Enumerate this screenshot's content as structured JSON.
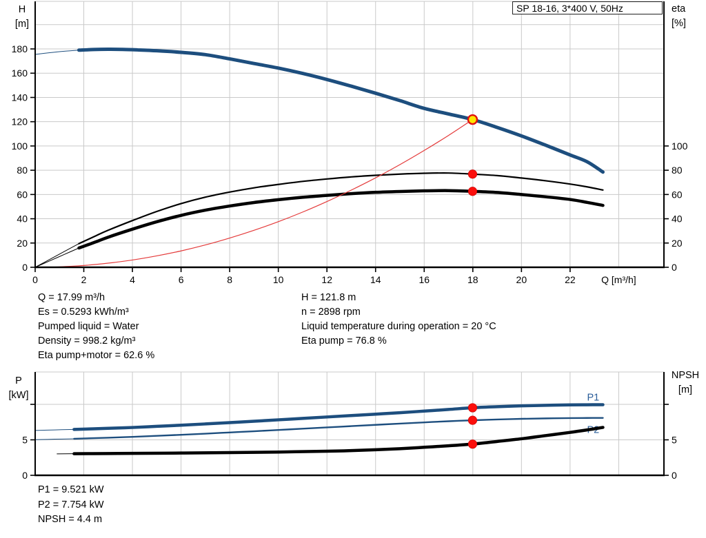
{
  "colors": {
    "curve_blue": "#1d4e7e",
    "curve_black": "#000000",
    "curve_red": "#e43a3a",
    "marker_red": "#fb0f0c",
    "duty_fill": "#ffe500",
    "duty_ring": "#e01010",
    "grid": "#c9c9c9",
    "axis": "#000000",
    "label_blue": "#2a5d99",
    "text": "#000000",
    "background": "#ffffff"
  },
  "axis_titles": {
    "qh_left": [
      "H",
      "[m]"
    ],
    "qh_right": [
      "eta",
      "[%]"
    ],
    "power_left": [
      "P",
      "[kW]"
    ],
    "power_right": [
      "NPSH",
      "[m]"
    ]
  },
  "info": {
    "left": [
      "Q = 17.99 m³/h",
      "Es = 0.5293 kWh/m³",
      "Pumped liquid = Water",
      "Density = 998.2 kg/m³",
      "Eta pump+motor = 62.6 %"
    ],
    "right": [
      "H = 121.8 m",
      "n = 2898 rpm",
      "Liquid temperature during operation = 20 °C",
      "Eta pump = 76.8 %"
    ],
    "bottom": [
      "P1 = 9.521 kW",
      "P2 = 7.754 kW",
      "NPSH = 4.4 m"
    ]
  },
  "chart_data": [
    {
      "id": "qh",
      "type": "line",
      "title": "SP 18-16, 3*400 V, 50Hz",
      "xlabel": "Q [m³/h]",
      "xlabel_at": 24,
      "ylabel_left": "H [m]",
      "ylabel_right": "eta [%]",
      "xlim": [
        0,
        25.86
      ],
      "ylim": [
        0,
        219.2
      ],
      "right_axis_scale": 1,
      "grid": true,
      "grid_x": [
        2,
        4,
        6,
        8,
        10,
        12,
        14,
        16,
        18,
        20,
        22,
        24
      ],
      "grid_y": [
        20,
        40,
        60,
        80,
        100,
        120,
        140,
        160,
        180,
        200
      ],
      "x_ticks": [
        {
          "v": 0,
          "label": "0"
        },
        {
          "v": 2,
          "label": "2"
        },
        {
          "v": 4,
          "label": "4"
        },
        {
          "v": 6,
          "label": "6"
        },
        {
          "v": 8,
          "label": "8"
        },
        {
          "v": 10,
          "label": "10"
        },
        {
          "v": 12,
          "label": "12"
        },
        {
          "v": 14,
          "label": "14"
        },
        {
          "v": 16,
          "label": "16"
        },
        {
          "v": 18,
          "label": "18"
        },
        {
          "v": 20,
          "label": "20"
        },
        {
          "v": 22,
          "label": "22"
        }
      ],
      "y_ticks_left": [
        {
          "v": 0,
          "label": "0"
        },
        {
          "v": 20,
          "label": "20"
        },
        {
          "v": 40,
          "label": "40"
        },
        {
          "v": 60,
          "label": "60"
        },
        {
          "v": 80,
          "label": "80"
        },
        {
          "v": 100,
          "label": "100"
        },
        {
          "v": 120,
          "label": "120"
        },
        {
          "v": 140,
          "label": "140"
        },
        {
          "v": 160,
          "label": "160"
        },
        {
          "v": 180,
          "label": "180"
        }
      ],
      "y_ticks_right": [
        {
          "v": 0,
          "label": "0"
        },
        {
          "v": 20,
          "label": "20"
        },
        {
          "v": 40,
          "label": "40"
        },
        {
          "v": 60,
          "label": "60"
        },
        {
          "v": 80,
          "label": "80"
        },
        {
          "v": 100,
          "label": "100"
        }
      ],
      "series": [
        {
          "name": "head-curve-lead",
          "color": "curve_blue",
          "width": 1,
          "points": [
            [
              0,
              175.5
            ],
            [
              0.6,
              176.9
            ],
            [
              1.2,
              178.1
            ],
            [
              1.8,
              179.0
            ]
          ]
        },
        {
          "name": "head-curve",
          "color": "curve_blue",
          "width": 5,
          "points": [
            [
              1.8,
              179.0
            ],
            [
              2.4,
              179.5
            ],
            [
              3,
              179.7
            ],
            [
              3.6,
              179.6
            ],
            [
              4.2,
              179.2
            ],
            [
              5,
              178.5
            ],
            [
              6,
              177.2
            ],
            [
              7,
              175.3
            ],
            [
              8,
              171.8
            ],
            [
              9,
              168.0
            ],
            [
              10,
              164.2
            ],
            [
              11,
              159.8
            ],
            [
              12,
              154.8
            ],
            [
              13,
              149.3
            ],
            [
              14,
              143.5
            ],
            [
              15,
              137.4
            ],
            [
              16,
              131.0
            ],
            [
              17,
              126.4
            ],
            [
              17.99,
              121.8
            ],
            [
              19,
              115.3
            ],
            [
              20,
              108.3
            ],
            [
              21,
              100.6
            ],
            [
              22,
              92.6
            ],
            [
              22.7,
              87.0
            ],
            [
              23.35,
              78.5
            ]
          ]
        },
        {
          "name": "eta-pump-curve-lead",
          "color": "curve_black",
          "width": 1,
          "points": [
            [
              0,
              0
            ],
            [
              0.6,
              6.5
            ],
            [
              1.2,
              13.0
            ],
            [
              1.8,
              19.5
            ]
          ]
        },
        {
          "name": "eta-pump-curve",
          "color": "curve_black",
          "width": 2.2,
          "points": [
            [
              1.8,
              19.5
            ],
            [
              2.5,
              26.0
            ],
            [
              3,
              30.5
            ],
            [
              4,
              38.5
            ],
            [
              5,
              46.0
            ],
            [
              6,
              52.5
            ],
            [
              7,
              57.8
            ],
            [
              8,
              62.0
            ],
            [
              9,
              65.5
            ],
            [
              10,
              68.3
            ],
            [
              11,
              70.8
            ],
            [
              12,
              72.8
            ],
            [
              13,
              74.5
            ],
            [
              14,
              75.8
            ],
            [
              15,
              76.8
            ],
            [
              16,
              77.5
            ],
            [
              17,
              77.7
            ],
            [
              17.99,
              76.8
            ],
            [
              19,
              75.6
            ],
            [
              20,
              73.6
            ],
            [
              21,
              71.3
            ],
            [
              22,
              68.6
            ],
            [
              22.7,
              66.3
            ],
            [
              23.35,
              63.7
            ]
          ]
        },
        {
          "name": "eta-pump-motor-curve-lead",
          "color": "curve_black",
          "width": 1,
          "points": [
            [
              0,
              0
            ],
            [
              0.6,
              5.3
            ],
            [
              1.2,
              10.6
            ],
            [
              1.8,
              15.9
            ]
          ]
        },
        {
          "name": "eta-pump-motor-curve",
          "color": "curve_black",
          "width": 4.5,
          "points": [
            [
              1.8,
              15.9
            ],
            [
              2.5,
              21.0
            ],
            [
              3,
              24.8
            ],
            [
              4,
              31.4
            ],
            [
              5,
              37.5
            ],
            [
              6,
              42.8
            ],
            [
              7,
              47.1
            ],
            [
              8,
              50.5
            ],
            [
              9,
              53.4
            ],
            [
              10,
              55.7
            ],
            [
              11,
              57.7
            ],
            [
              12,
              59.3
            ],
            [
              13,
              60.7
            ],
            [
              14,
              61.8
            ],
            [
              15,
              62.5
            ],
            [
              16,
              63.0
            ],
            [
              17,
              63.2
            ],
            [
              17.99,
              62.6
            ],
            [
              19,
              61.7
            ],
            [
              20,
              60.0
            ],
            [
              21,
              58.1
            ],
            [
              22,
              55.9
            ],
            [
              22.7,
              53.5
            ],
            [
              23.35,
              51.0
            ]
          ]
        },
        {
          "name": "system-curve",
          "color": "curve_red",
          "width": 1.2,
          "points": [
            [
              0,
              0
            ],
            [
              1,
              0.4
            ],
            [
              2,
              1.5
            ],
            [
              3,
              3.4
            ],
            [
              4,
              6.0
            ],
            [
              5,
              9.4
            ],
            [
              6,
              13.5
            ],
            [
              7,
              18.4
            ],
            [
              8,
              24.1
            ],
            [
              9,
              30.5
            ],
            [
              10,
              37.6
            ],
            [
              11,
              45.5
            ],
            [
              12,
              54.2
            ],
            [
              13,
              63.6
            ],
            [
              14,
              73.7
            ],
            [
              15,
              84.6
            ],
            [
              16,
              96.3
            ],
            [
              17,
              108.7
            ],
            [
              17.99,
              121.8
            ]
          ]
        }
      ],
      "markers": [
        {
          "name": "duty-point-qh",
          "kind": "duty",
          "x": 17.99,
          "y": 121.8
        },
        {
          "name": "duty-point-eta-pump",
          "kind": "point",
          "x": 17.99,
          "y": 76.8
        },
        {
          "name": "duty-point-eta-pump-motor",
          "kind": "point",
          "x": 17.99,
          "y": 62.6
        }
      ],
      "annotations": []
    },
    {
      "id": "power",
      "type": "line",
      "title": "",
      "xlabel": "",
      "ylabel_left": "P [kW]",
      "ylabel_right": "NPSH [m]",
      "xlim": [
        0,
        25.86
      ],
      "ylim": [
        0,
        14.56
      ],
      "right_axis_scale": 1,
      "grid": true,
      "grid_x": [
        2,
        4,
        6,
        8,
        10,
        12,
        14,
        16,
        18,
        20,
        22,
        24
      ],
      "grid_y": [
        5,
        10
      ],
      "x_ticks": [],
      "y_ticks_left": [
        {
          "v": 0,
          "label": "0"
        },
        {
          "v": 5,
          "label": "5"
        },
        {
          "v": 10,
          "label": ""
        }
      ],
      "y_ticks_right": [
        {
          "v": 0,
          "label": "0"
        },
        {
          "v": 5,
          "label": "5"
        },
        {
          "v": 10,
          "label": ""
        }
      ],
      "series": [
        {
          "name": "p1-curve-lead",
          "color": "curve_blue",
          "width": 1,
          "points": [
            [
              0,
              6.32
            ],
            [
              0.8,
              6.4
            ],
            [
              1.6,
              6.47
            ]
          ]
        },
        {
          "name": "p1-curve",
          "color": "curve_blue",
          "width": 4.5,
          "points": [
            [
              1.6,
              6.47
            ],
            [
              3,
              6.62
            ],
            [
              4,
              6.74
            ],
            [
              5,
              6.9
            ],
            [
              6,
              7.06
            ],
            [
              7,
              7.24
            ],
            [
              8,
              7.43
            ],
            [
              9,
              7.62
            ],
            [
              10,
              7.82
            ],
            [
              11,
              8.02
            ],
            [
              12,
              8.22
            ],
            [
              13,
              8.42
            ],
            [
              14,
              8.62
            ],
            [
              15,
              8.82
            ],
            [
              16,
              9.05
            ],
            [
              17,
              9.28
            ],
            [
              17.99,
              9.521
            ],
            [
              19,
              9.67
            ],
            [
              20,
              9.79
            ],
            [
              21,
              9.87
            ],
            [
              22,
              9.92
            ],
            [
              22.7,
              9.94
            ],
            [
              23.35,
              9.95
            ]
          ]
        },
        {
          "name": "p2-curve-lead",
          "color": "curve_blue",
          "width": 1,
          "points": [
            [
              0,
              5.02
            ],
            [
              0.8,
              5.09
            ],
            [
              1.6,
              5.15
            ]
          ]
        },
        {
          "name": "p2-curve",
          "color": "curve_blue",
          "width": 2.4,
          "points": [
            [
              1.6,
              5.15
            ],
            [
              3,
              5.3
            ],
            [
              4,
              5.42
            ],
            [
              5,
              5.56
            ],
            [
              6,
              5.71
            ],
            [
              7,
              5.87
            ],
            [
              8,
              6.04
            ],
            [
              9,
              6.21
            ],
            [
              10,
              6.39
            ],
            [
              11,
              6.57
            ],
            [
              12,
              6.75
            ],
            [
              13,
              6.93
            ],
            [
              14,
              7.11
            ],
            [
              15,
              7.29
            ],
            [
              16,
              7.46
            ],
            [
              17,
              7.62
            ],
            [
              17.99,
              7.754
            ],
            [
              19,
              7.87
            ],
            [
              20,
              7.96
            ],
            [
              21,
              8.02
            ],
            [
              22,
              8.06
            ],
            [
              22.7,
              8.08
            ],
            [
              23.35,
              8.09
            ]
          ]
        },
        {
          "name": "npsh-curve-lead",
          "color": "curve_black",
          "width": 1,
          "points": [
            [
              0.9,
              3.02
            ],
            [
              1.6,
              3.04
            ]
          ]
        },
        {
          "name": "npsh-curve",
          "color": "curve_black",
          "width": 4.5,
          "points": [
            [
              1.6,
              3.04
            ],
            [
              3,
              3.07
            ],
            [
              4,
              3.09
            ],
            [
              6,
              3.14
            ],
            [
              8,
              3.2
            ],
            [
              10,
              3.28
            ],
            [
              12,
              3.4
            ],
            [
              13,
              3.48
            ],
            [
              14,
              3.6
            ],
            [
              15,
              3.75
            ],
            [
              16,
              3.95
            ],
            [
              17,
              4.16
            ],
            [
              17.99,
              4.4
            ],
            [
              19,
              4.77
            ],
            [
              20,
              5.15
            ],
            [
              21,
              5.6
            ],
            [
              22,
              6.05
            ],
            [
              22.7,
              6.4
            ],
            [
              23.35,
              6.75
            ]
          ]
        }
      ],
      "markers": [
        {
          "name": "duty-point-p1",
          "kind": "point",
          "x": 17.99,
          "y": 9.521
        },
        {
          "name": "duty-point-p2",
          "kind": "point",
          "x": 17.99,
          "y": 7.754
        },
        {
          "name": "duty-point-npsh",
          "kind": "point",
          "x": 17.99,
          "y": 4.4
        }
      ],
      "annotations": [
        {
          "name": "p1-curve-label",
          "text": "P1",
          "x": 22.95,
          "y": 11.0,
          "color": "label_blue"
        },
        {
          "name": "p2-curve-label",
          "text": "P2",
          "x": 22.95,
          "y": 6.45,
          "color": "label_blue"
        }
      ]
    }
  ]
}
